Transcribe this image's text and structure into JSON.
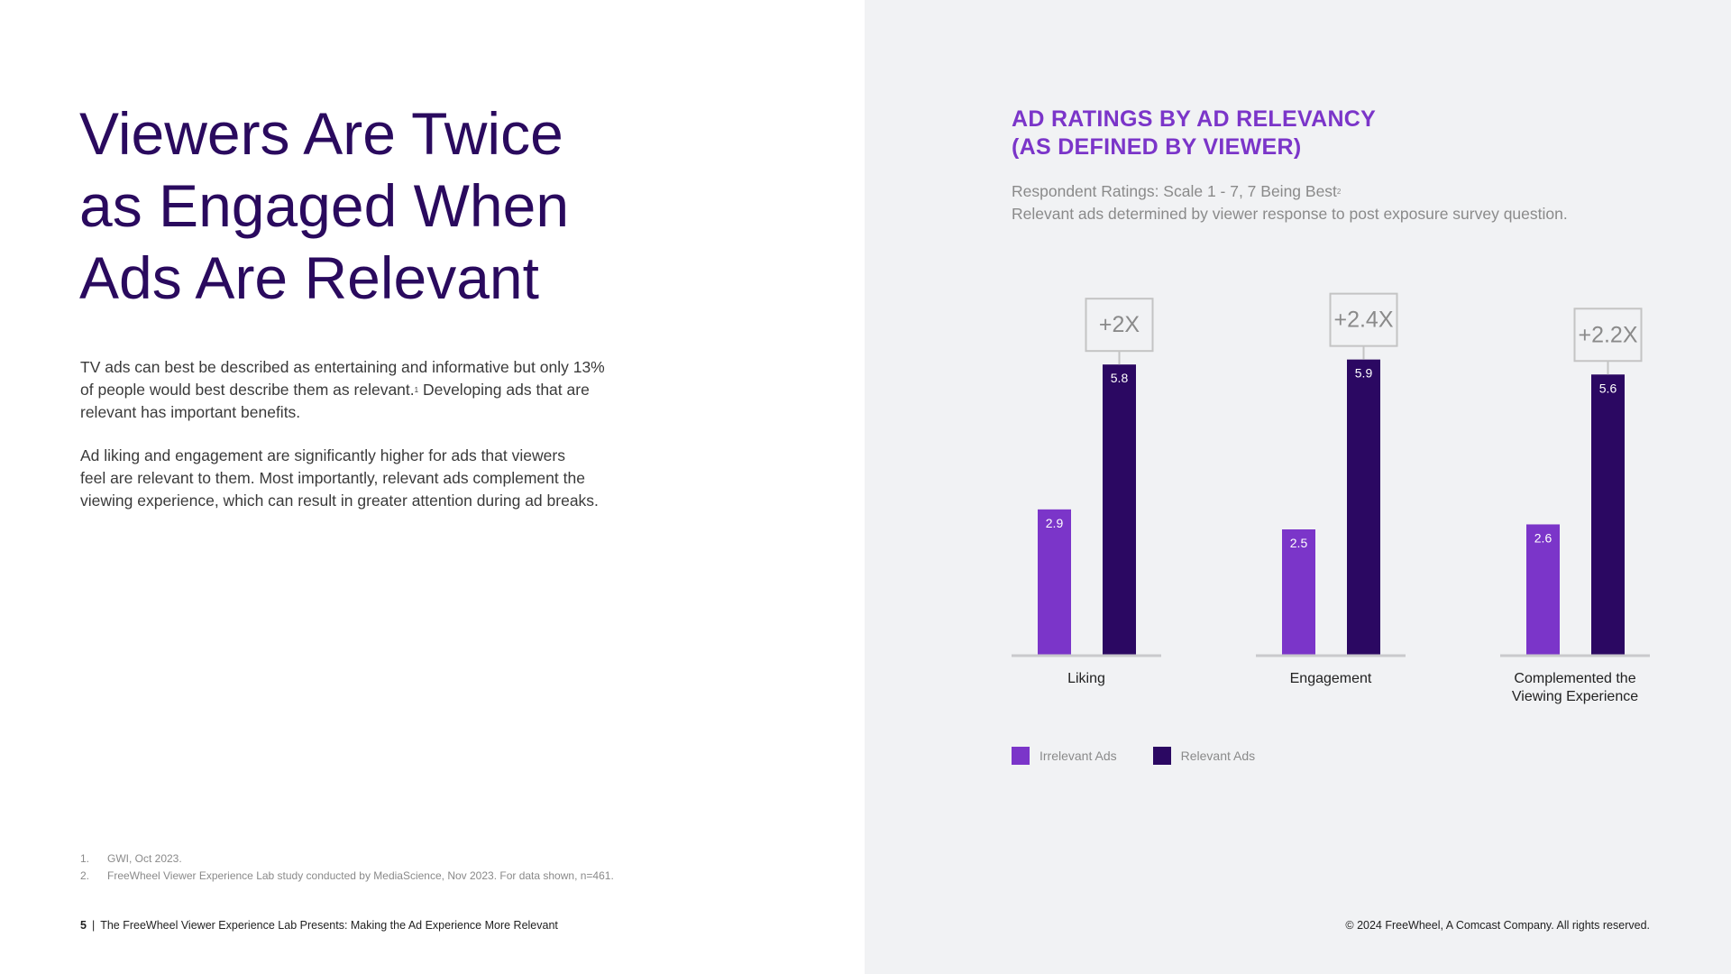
{
  "left": {
    "headline_lines": [
      "Viewers Are Twice",
      "as Engaged When",
      "Ads Are Relevant"
    ],
    "paragraph1_lines": [
      "TV ads can best be described as entertaining and informative but only 13%",
      "of people would best describe them as relevant.",
      "relevant has important benefits."
    ],
    "paragraph1_sup": "1",
    "paragraph1_line2_tail": " Developing ads that are",
    "paragraph2_lines": [
      "Ad liking and engagement are significantly higher for ads that viewers",
      "feel are relevant to them. Most importantly, relevant ads complement the",
      "viewing experience, which can result in greater attention during ad breaks."
    ],
    "footnotes": [
      {
        "num": "1.",
        "text": "GWI, Oct 2023."
      },
      {
        "num": "2.",
        "text": "FreeWheel Viewer Experience Lab study conducted by MediaScience, Nov 2023. For data shown, n=461."
      }
    ],
    "page_number": "5",
    "separator": "|",
    "footer_text": "The FreeWheel Viewer Experience Lab Presents: Making the Ad Experience More Relevant"
  },
  "right": {
    "chart_title_lines": [
      "AD RATINGS BY AD RELEVANCY",
      "(AS DEFINED BY VIEWER)"
    ],
    "subtitle_line1": "Respondent Ratings: Scale 1 - 7, 7 Being Best",
    "subtitle_sup": "2",
    "subtitle_line2": "Relevant ads determined by viewer response to post exposure survey question.",
    "copyright": "© 2024 FreeWheel, A Comcast Company. All rights reserved."
  },
  "chart_data": {
    "type": "bar",
    "categories": [
      "Liking",
      "Engagement",
      "Complemented the Viewing Experience"
    ],
    "category_label_lines": [
      [
        "Liking"
      ],
      [
        "Engagement"
      ],
      [
        "Complemented the",
        "Viewing Experience"
      ]
    ],
    "series": [
      {
        "name": "Irrelevant Ads",
        "values": [
          2.9,
          2.5,
          2.6
        ],
        "color": "#7b35c9"
      },
      {
        "name": "Relevant Ads",
        "values": [
          5.8,
          5.9,
          5.6
        ],
        "color": "#2b0862"
      }
    ],
    "annotations": [
      "+2X",
      "+2.4X",
      "+2.2X"
    ],
    "ylim": [
      0,
      7
    ],
    "legend_position": "bottom-left",
    "grid": false,
    "colors": {
      "baseline": "#c9c9cc",
      "annotation_border": "#c4c4c4",
      "annotation_text": "#8a8a8a",
      "label_text": "#222222",
      "value_label": "#ffffff"
    }
  }
}
